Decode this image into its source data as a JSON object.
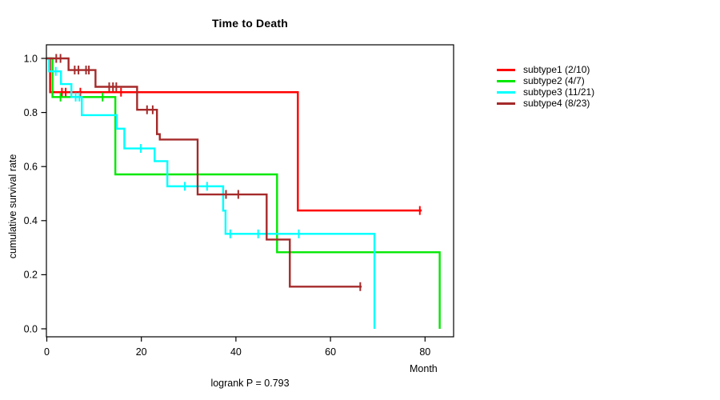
{
  "title": "Time to Death",
  "footer": "logrank P = 0.793",
  "axes": {
    "xlabel": "Month",
    "ylabel": "cumulative survival rate",
    "x_ticks": [
      {
        "value": 0,
        "label": "0"
      },
      {
        "value": 20,
        "label": "20"
      },
      {
        "value": 40,
        "label": "40"
      },
      {
        "value": 60,
        "label": "60"
      },
      {
        "value": 80,
        "label": "80"
      }
    ],
    "y_ticks": [
      {
        "value": 1.0,
        "label": "1.0"
      },
      {
        "value": 0.8,
        "label": "0.8"
      },
      {
        "value": 0.6,
        "label": "0.6"
      },
      {
        "value": 0.4,
        "label": "0.4"
      },
      {
        "value": 0.2,
        "label": "0.2"
      },
      {
        "value": 0.0,
        "label": "0.0"
      }
    ]
  },
  "chart_data": {
    "type": "line",
    "subtype": "kaplan-meier-step",
    "title": "Time to Death",
    "xlabel": "Month",
    "ylabel": "cumulative survival rate",
    "xlim": [
      0,
      86
    ],
    "ylim": [
      0.0,
      1.0
    ],
    "grid": false,
    "legend_position": "right-outside",
    "series": [
      {
        "name": "subtype1",
        "label": "subtype1 (2/10)",
        "color": "#ff0000",
        "steps": [
          [
            0,
            1.0
          ],
          [
            0.7,
            0.875
          ],
          [
            53.1,
            0.4375
          ]
        ],
        "end_month": 79.3,
        "censors": [
          [
            3.2,
            0.875
          ],
          [
            4.0,
            0.875
          ],
          [
            7.1,
            0.875
          ],
          [
            15.7,
            0.875
          ],
          [
            78.9,
            0.4375
          ]
        ]
      },
      {
        "name": "subtype2",
        "label": "subtype2 (4/7)",
        "color": "#00e800",
        "steps": [
          [
            0,
            1.0
          ],
          [
            1.2,
            0.857
          ],
          [
            14.5,
            0.571
          ],
          [
            48.7,
            0.283
          ],
          [
            83.1,
            0.0
          ]
        ],
        "end_month": 83.1,
        "censors": [
          [
            2.9,
            0.857
          ],
          [
            11.8,
            0.857
          ]
        ]
      },
      {
        "name": "subtype3",
        "label": "subtype3 (11/21)",
        "color": "#00ffff",
        "steps": [
          [
            0,
            1.0
          ],
          [
            0.5,
            0.952
          ],
          [
            3.0,
            0.905
          ],
          [
            5.2,
            0.857
          ],
          [
            7.4,
            0.79
          ],
          [
            14.8,
            0.74
          ],
          [
            16.4,
            0.667
          ],
          [
            22.8,
            0.62
          ],
          [
            25.5,
            0.527
          ],
          [
            37.3,
            0.437
          ],
          [
            37.8,
            0.351
          ],
          [
            69.3,
            0.0
          ]
        ],
        "end_month": 69.3,
        "censors": [
          [
            1.9,
            0.952
          ],
          [
            6.1,
            0.857
          ],
          [
            6.9,
            0.857
          ],
          [
            19.9,
            0.667
          ],
          [
            29.2,
            0.527
          ],
          [
            33.9,
            0.527
          ],
          [
            38.8,
            0.351
          ],
          [
            44.7,
            0.351
          ],
          [
            53.3,
            0.351
          ]
        ]
      },
      {
        "name": "subtype4",
        "label": "subtype4 (8/23)",
        "color": "#a52a2a",
        "steps": [
          [
            0,
            1.0
          ],
          [
            4.6,
            0.957
          ],
          [
            10.3,
            0.895
          ],
          [
            19.1,
            0.81
          ],
          [
            23.3,
            0.72
          ],
          [
            23.9,
            0.7
          ],
          [
            31.9,
            0.497
          ],
          [
            46.5,
            0.33
          ],
          [
            51.4,
            0.156
          ]
        ],
        "end_month": 66.6,
        "censors": [
          [
            2.0,
            1.0
          ],
          [
            2.9,
            1.0
          ],
          [
            5.9,
            0.957
          ],
          [
            6.7,
            0.957
          ],
          [
            8.3,
            0.957
          ],
          [
            8.9,
            0.957
          ],
          [
            13.2,
            0.895
          ],
          [
            14.0,
            0.895
          ],
          [
            14.7,
            0.895
          ],
          [
            21.2,
            0.81
          ],
          [
            22.4,
            0.81
          ],
          [
            37.9,
            0.497
          ],
          [
            40.5,
            0.497
          ],
          [
            66.3,
            0.156
          ]
        ]
      }
    ]
  }
}
